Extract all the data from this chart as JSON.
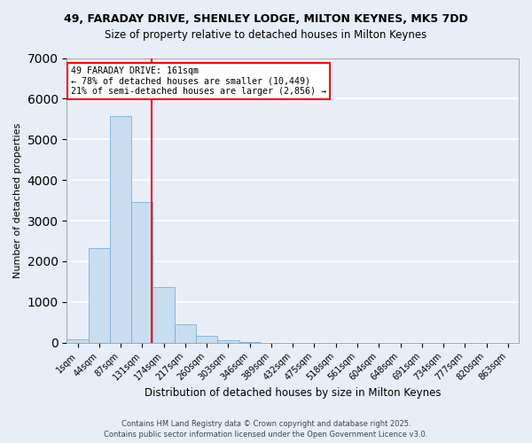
{
  "title_line1": "49, FARADAY DRIVE, SHENLEY LODGE, MILTON KEYNES, MK5 7DD",
  "title_line2": "Size of property relative to detached houses in Milton Keynes",
  "xlabel": "Distribution of detached houses by size in Milton Keynes",
  "ylabel": "Number of detached properties",
  "bar_labels": [
    "1sqm",
    "44sqm",
    "87sqm",
    "131sqm",
    "174sqm",
    "217sqm",
    "260sqm",
    "303sqm",
    "346sqm",
    "389sqm",
    "432sqm",
    "475sqm",
    "518sqm",
    "561sqm",
    "604sqm",
    "648sqm",
    "691sqm",
    "734sqm",
    "777sqm",
    "820sqm",
    "863sqm"
  ],
  "bar_values": [
    80,
    2320,
    5580,
    3460,
    1360,
    460,
    170,
    50,
    10,
    0,
    0,
    0,
    0,
    0,
    0,
    0,
    0,
    0,
    0,
    0,
    0
  ],
  "bar_color": "#c8ddf0",
  "bar_edge_color": "#7aafd4",
  "vline_color": "red",
  "vline_x": 3.43,
  "annotation_title": "49 FARADAY DRIVE: 161sqm",
  "annotation_line1": "← 78% of detached houses are smaller (10,449)",
  "annotation_line2": "21% of semi-detached houses are larger (2,856) →",
  "annotation_box_edgecolor": "red",
  "annotation_bg_color": "white",
  "ylim": [
    0,
    7000
  ],
  "yticks": [
    0,
    1000,
    2000,
    3000,
    4000,
    5000,
    6000,
    7000
  ],
  "footer_line1": "Contains HM Land Registry data © Crown copyright and database right 2025.",
  "footer_line2": "Contains public sector information licensed under the Open Government Licence v3.0.",
  "bg_color": "#e8eef8",
  "plot_bg_color": "#e8eef8",
  "grid_color": "#ffffff"
}
